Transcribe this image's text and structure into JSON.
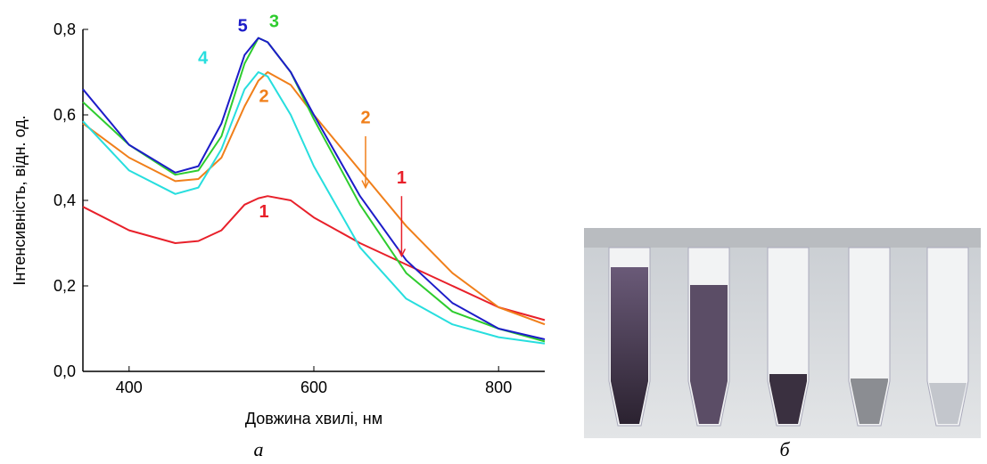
{
  "chart_data": {
    "type": "line",
    "x_label": "Довжина хвилі, нм",
    "y_label": "Інтенсивність, відн. од.",
    "x": [
      350,
      400,
      450,
      475,
      500,
      525,
      540,
      550,
      575,
      600,
      650,
      700,
      750,
      800,
      850
    ],
    "series": [
      {
        "name": "1",
        "color": "#e8202a",
        "values": [
          0.385,
          0.33,
          0.3,
          0.305,
          0.33,
          0.39,
          0.405,
          0.41,
          0.4,
          0.36,
          0.3,
          0.25,
          0.2,
          0.15,
          0.12
        ]
      },
      {
        "name": "2",
        "color": "#f07f1a",
        "values": [
          0.58,
          0.5,
          0.445,
          0.45,
          0.5,
          0.62,
          0.68,
          0.7,
          0.67,
          0.6,
          0.47,
          0.34,
          0.23,
          0.15,
          0.11
        ]
      },
      {
        "name": "3",
        "color": "#2ecc2e",
        "values": [
          0.63,
          0.53,
          0.46,
          0.47,
          0.55,
          0.72,
          0.78,
          0.77,
          0.7,
          0.59,
          0.39,
          0.23,
          0.14,
          0.1,
          0.07
        ]
      },
      {
        "name": "4",
        "color": "#27dede",
        "values": [
          0.585,
          0.47,
          0.415,
          0.43,
          0.52,
          0.66,
          0.7,
          0.69,
          0.6,
          0.48,
          0.29,
          0.17,
          0.11,
          0.08,
          0.065
        ]
      },
      {
        "name": "5",
        "color": "#1c1cc8",
        "values": [
          0.66,
          0.53,
          0.465,
          0.48,
          0.58,
          0.74,
          0.78,
          0.77,
          0.7,
          0.6,
          0.41,
          0.26,
          0.16,
          0.1,
          0.075
        ]
      }
    ],
    "annotations": [
      {
        "text": "2",
        "color": "#f07f1a"
      },
      {
        "text": "1",
        "color": "#e8202a"
      }
    ],
    "xlim": [
      350,
      850
    ],
    "xticks": [
      400,
      600,
      800
    ],
    "ylim": [
      0,
      0.8
    ],
    "yticks": [
      {
        "value": 0,
        "label": "0,0"
      },
      {
        "value": 0.2,
        "label": "0,2"
      },
      {
        "value": 0.4,
        "label": "0,4"
      },
      {
        "value": 0.6,
        "label": "0,6"
      },
      {
        "value": 0.8,
        "label": "0,8"
      }
    ]
  },
  "panel_labels": [
    "а",
    "б"
  ]
}
